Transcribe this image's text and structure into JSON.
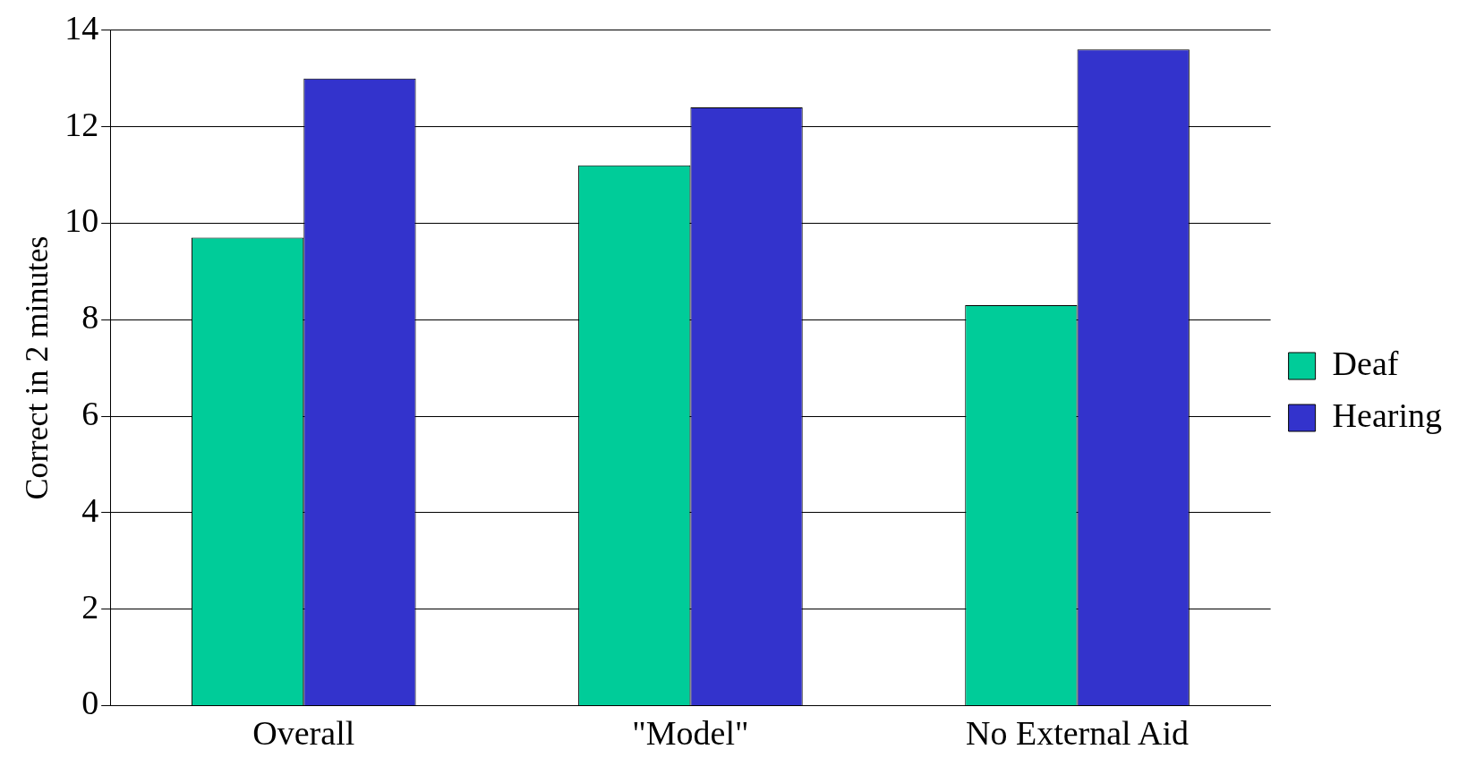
{
  "chart_data": {
    "type": "bar",
    "ylabel": "Correct in 2 minutes",
    "categories": [
      "Overall",
      "\"Model\"",
      "No External Aid"
    ],
    "series": [
      {
        "name": "Deaf",
        "color": "#00cc99",
        "values": [
          9.7,
          11.2,
          8.3
        ]
      },
      {
        "name": "Hearing",
        "color": "#3333cc",
        "values": [
          13.0,
          12.4,
          13.6
        ]
      }
    ],
    "ylim": [
      0,
      14
    ],
    "yticks": [
      0,
      2,
      4,
      6,
      8,
      10,
      12,
      14
    ],
    "grid": "y",
    "legend": "right"
  }
}
